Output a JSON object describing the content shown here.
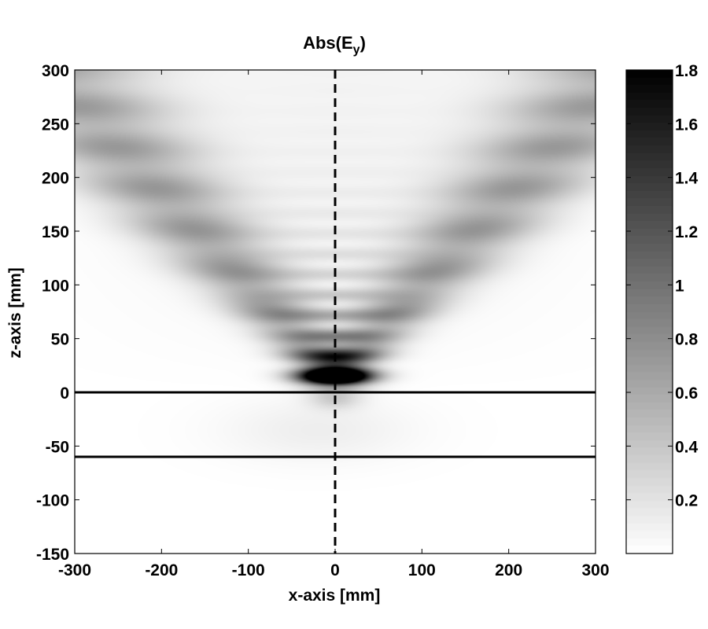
{
  "chart_data": {
    "type": "heatmap",
    "title": {
      "text": "Abs(E",
      "subscript": "y",
      "suffix": ")"
    },
    "xlabel": "x-axis [mm]",
    "ylabel": "z-axis [mm]",
    "xlim": [
      -300,
      300
    ],
    "ylim": [
      -150,
      300
    ],
    "x_ticks": [
      -300,
      -200,
      -100,
      0,
      100,
      200,
      300
    ],
    "y_ticks": [
      -150,
      -100,
      -50,
      0,
      50,
      100,
      150,
      200,
      250,
      300
    ],
    "colorbar": {
      "range": [
        0,
        1.8
      ],
      "ticks": [
        0.2,
        0.4,
        0.6,
        0.8,
        1,
        1.2,
        1.4,
        1.6,
        1.8
      ],
      "colormap": "gray_reversed",
      "low_color": "#ffffff",
      "high_color": "#000000"
    },
    "reference_lines": [
      {
        "orientation": "horizontal",
        "z": 0,
        "style": "solid"
      },
      {
        "orientation": "horizontal",
        "z": -60,
        "style": "solid"
      },
      {
        "orientation": "vertical",
        "x": 0,
        "style": "dashed"
      }
    ],
    "features": {
      "peak": {
        "x": 0,
        "z": 15,
        "value": 1.8
      },
      "beam_arms": [
        {
          "side": "left",
          "from": [
            0,
            15
          ],
          "to": [
            -280,
            250
          ],
          "value": 0.7
        },
        {
          "side": "right",
          "from": [
            0,
            15
          ],
          "to": [
            280,
            250
          ],
          "value": 0.7
        }
      ],
      "fringe_spacing_z": 19,
      "grid_on": false
    }
  }
}
